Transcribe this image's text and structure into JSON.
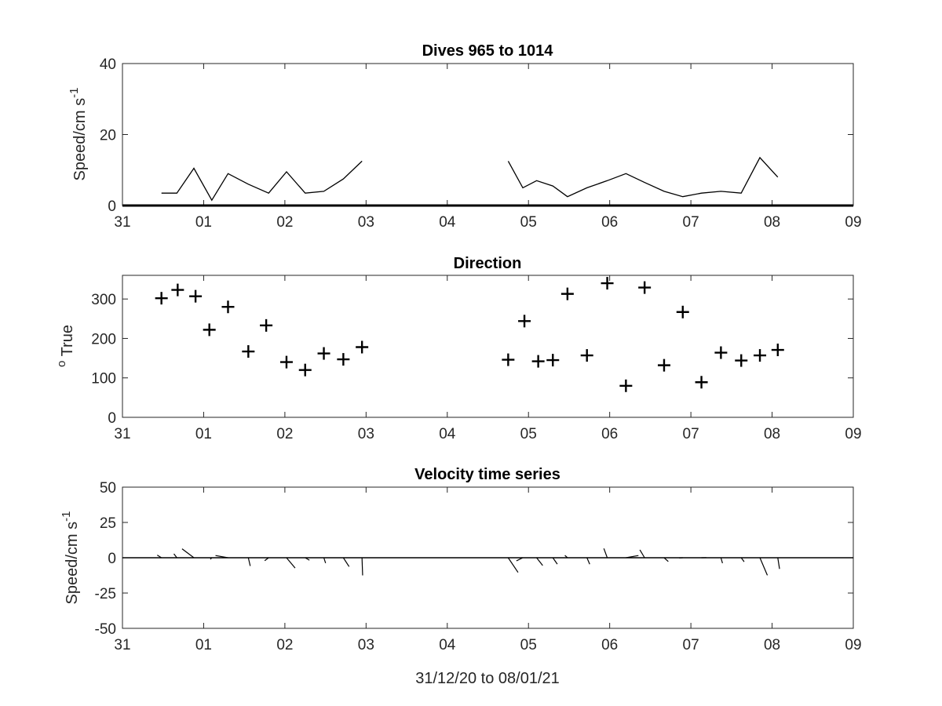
{
  "chart_data": [
    {
      "type": "line",
      "title": "Dives 965 to 1014",
      "ylabel": "Speed/cm s",
      "ylabel_exp": "-1",
      "xlim": [
        0,
        9
      ],
      "ylim": [
        0,
        40
      ],
      "xticks": [
        0,
        1,
        2,
        3,
        4,
        5,
        6,
        7,
        8,
        9
      ],
      "xtick_labels": [
        "31",
        "01",
        "02",
        "03",
        "04",
        "05",
        "06",
        "07",
        "08",
        "09"
      ],
      "yticks": [
        0,
        20,
        40
      ],
      "ytick_labels": [
        "0",
        "20",
        "40"
      ],
      "segments": [
        {
          "x": [
            0.48,
            0.67,
            0.88,
            1.1,
            1.3,
            1.55,
            1.8,
            2.02,
            2.25,
            2.48,
            2.72,
            2.95
          ],
          "y": [
            3.5,
            3.5,
            10.5,
            1.5,
            9,
            6,
            3.5,
            9.5,
            3.5,
            4,
            7.5,
            12.5
          ]
        },
        {
          "x": [
            4.75,
            4.93,
            5.1,
            5.3,
            5.48,
            5.72,
            5.97,
            6.2,
            6.43,
            6.67,
            6.9,
            7.13,
            7.37,
            7.62,
            7.85,
            8.07
          ],
          "y": [
            12.5,
            5,
            7,
            5.5,
            2.5,
            5,
            7,
            9,
            6.5,
            4,
            2.5,
            3.5,
            4,
            3.5,
            13.5,
            8
          ]
        }
      ]
    },
    {
      "type": "scatter",
      "title": "Direction",
      "ylabel": "True",
      "ylabel_prefix": "o",
      "marker": "+",
      "xlim": [
        0,
        9
      ],
      "ylim": [
        0,
        360
      ],
      "xticks": [
        0,
        1,
        2,
        3,
        4,
        5,
        6,
        7,
        8,
        9
      ],
      "xtick_labels": [
        "31",
        "01",
        "02",
        "03",
        "04",
        "05",
        "06",
        "07",
        "08",
        "09"
      ],
      "yticks": [
        0,
        100,
        200,
        300
      ],
      "ytick_labels": [
        "0",
        "100",
        "200",
        "300"
      ],
      "x": [
        0.48,
        0.68,
        0.9,
        1.07,
        1.3,
        1.55,
        1.77,
        2.02,
        2.25,
        2.48,
        2.72,
        2.95,
        4.75,
        4.95,
        5.12,
        5.3,
        5.48,
        5.72,
        5.97,
        6.2,
        6.43,
        6.67,
        6.9,
        7.13,
        7.37,
        7.62,
        7.85,
        8.07
      ],
      "y": [
        302,
        323,
        307,
        222,
        280,
        167,
        233,
        140,
        120,
        162,
        147,
        178,
        146,
        244,
        142,
        145,
        313,
        157,
        340,
        80,
        329,
        132,
        267,
        89,
        164,
        144,
        157,
        171
      ]
    },
    {
      "type": "quiver",
      "title": "Velocity time series",
      "ylabel": "Speed/cm s",
      "ylabel_exp": "-1",
      "xlabel": "31/12/20 to 08/01/21",
      "xlim": [
        0,
        9
      ],
      "ylim": [
        -50,
        50
      ],
      "xticks": [
        0,
        1,
        2,
        3,
        4,
        5,
        6,
        7,
        8,
        9
      ],
      "xtick_labels": [
        "31",
        "01",
        "02",
        "03",
        "04",
        "05",
        "06",
        "07",
        "08",
        "09"
      ],
      "yticks": [
        50,
        25,
        0,
        -25,
        -50
      ],
      "ytick_labels": [
        "50",
        "25",
        "0",
        "-25",
        "-50"
      ],
      "x": [
        0.48,
        0.67,
        0.88,
        1.1,
        1.3,
        1.55,
        1.8,
        2.02,
        2.25,
        2.48,
        2.72,
        2.95,
        4.75,
        4.93,
        5.1,
        5.3,
        5.48,
        5.72,
        5.97,
        6.2,
        6.43,
        6.67,
        6.9,
        7.13,
        7.37,
        7.62,
        7.85,
        8.07
      ],
      "speed": [
        3.5,
        3.5,
        10.5,
        1.5,
        9,
        6,
        3.5,
        9.5,
        3.5,
        4,
        7.5,
        12.5,
        12.5,
        5,
        7,
        5.5,
        2.5,
        5,
        7,
        9,
        6.5,
        4,
        2.5,
        3.5,
        4,
        3.5,
        13.5,
        8
      ],
      "direction": [
        302,
        323,
        307,
        222,
        280,
        167,
        233,
        140,
        120,
        162,
        147,
        178,
        146,
        244,
        142,
        145,
        313,
        157,
        340,
        80,
        329,
        132,
        267,
        89,
        164,
        144,
        157,
        171
      ]
    }
  ]
}
